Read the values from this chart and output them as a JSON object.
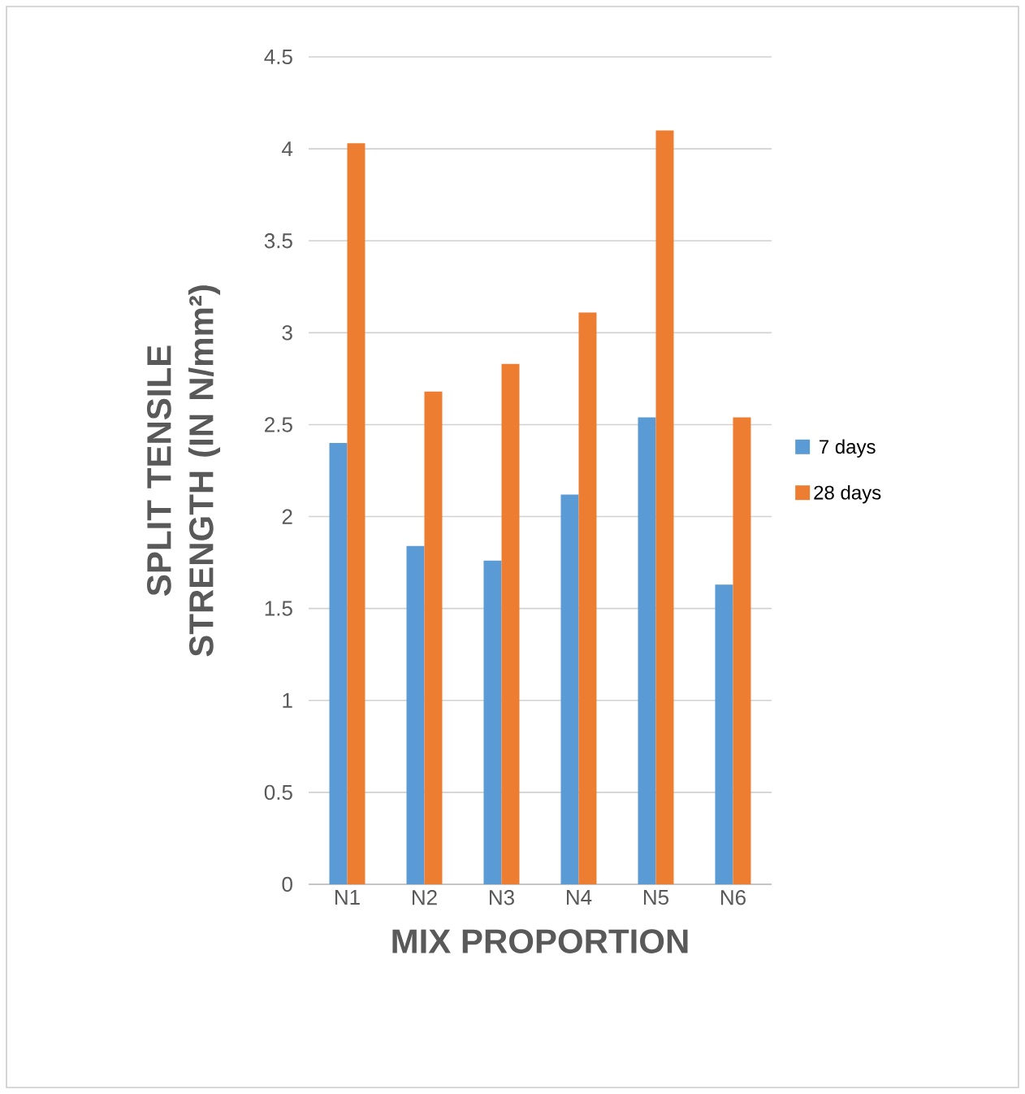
{
  "chart_data": {
    "type": "bar",
    "xlabel": "MIX PROPORTION",
    "ylabel": "SPLIT TENSILE STRENGTH (IN N/mm²)",
    "categories": [
      "N1",
      "N2",
      "N3",
      "N4",
      "N5",
      "N6"
    ],
    "series": [
      {
        "name": "7 days",
        "color": "#5b9bd5",
        "values": [
          2.4,
          1.84,
          1.76,
          2.12,
          2.54,
          1.63
        ]
      },
      {
        "name": "28 days",
        "color": "#ed7d31",
        "values": [
          4.03,
          2.68,
          2.83,
          3.11,
          4.1,
          2.54
        ]
      }
    ],
    "ylim": [
      0,
      4.5
    ],
    "yticks": [
      0,
      0.5,
      1,
      1.5,
      2,
      2.5,
      3,
      3.5,
      4,
      4.5
    ],
    "grid": "y",
    "legend": "right"
  }
}
